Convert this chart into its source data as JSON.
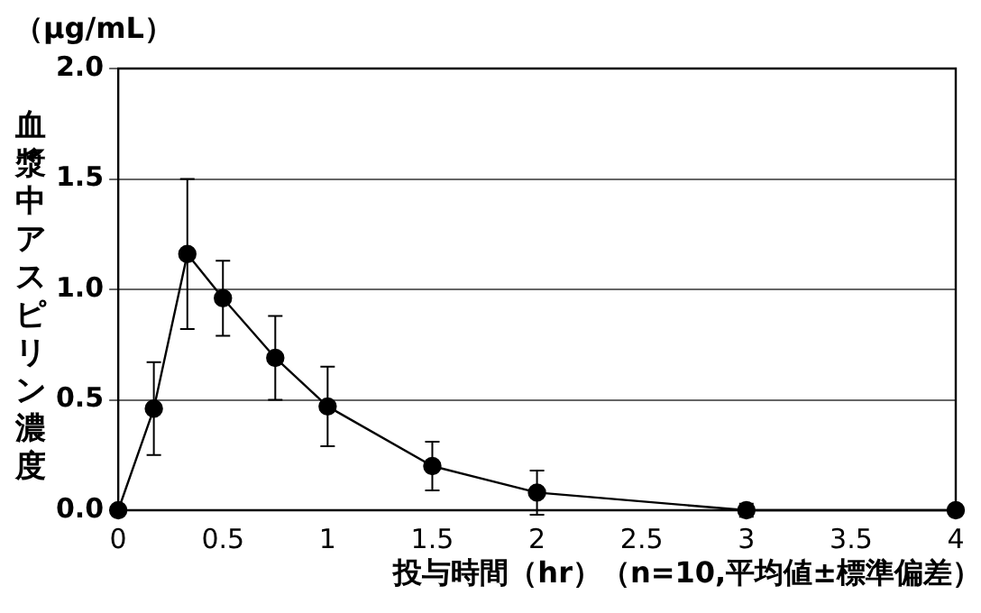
{
  "chart_data": {
    "type": "line",
    "ylabel": "血漿中アスピリン濃度",
    "xlabel": "投与時間（hr）（n=10,平均値±標準偏差）",
    "annotations": [
      "（μg/mL）"
    ],
    "x": [
      0,
      0.17,
      0.33,
      0.5,
      0.75,
      1,
      1.5,
      2,
      3,
      4
    ],
    "series": [
      {
        "color": "#000000",
        "values": [
          0,
          0.46,
          1.16,
          0.96,
          0.69,
          0.47,
          0.2,
          0.08,
          0,
          0
        ],
        "errors": [
          null,
          0.21,
          0.34,
          0.17,
          0.19,
          0.18,
          0.11,
          0.1,
          0.03,
          null
        ]
      }
    ],
    "xlim": [
      0,
      4
    ],
    "xticks": [
      0,
      0.5,
      1,
      1.5,
      2,
      2.5,
      3,
      3.5,
      4
    ],
    "ylim": [
      0,
      2
    ],
    "yticks": [
      {
        "value": 0,
        "label": "0.0"
      },
      {
        "value": 0.5,
        "label": "0.5"
      },
      {
        "value": 1,
        "label": "1.0"
      },
      {
        "value": 1.5,
        "label": "1.5"
      },
      {
        "value": 2,
        "label": "2.0"
      }
    ],
    "grid": "y",
    "legend": false,
    "marker": "circle",
    "line_style": "solid"
  }
}
